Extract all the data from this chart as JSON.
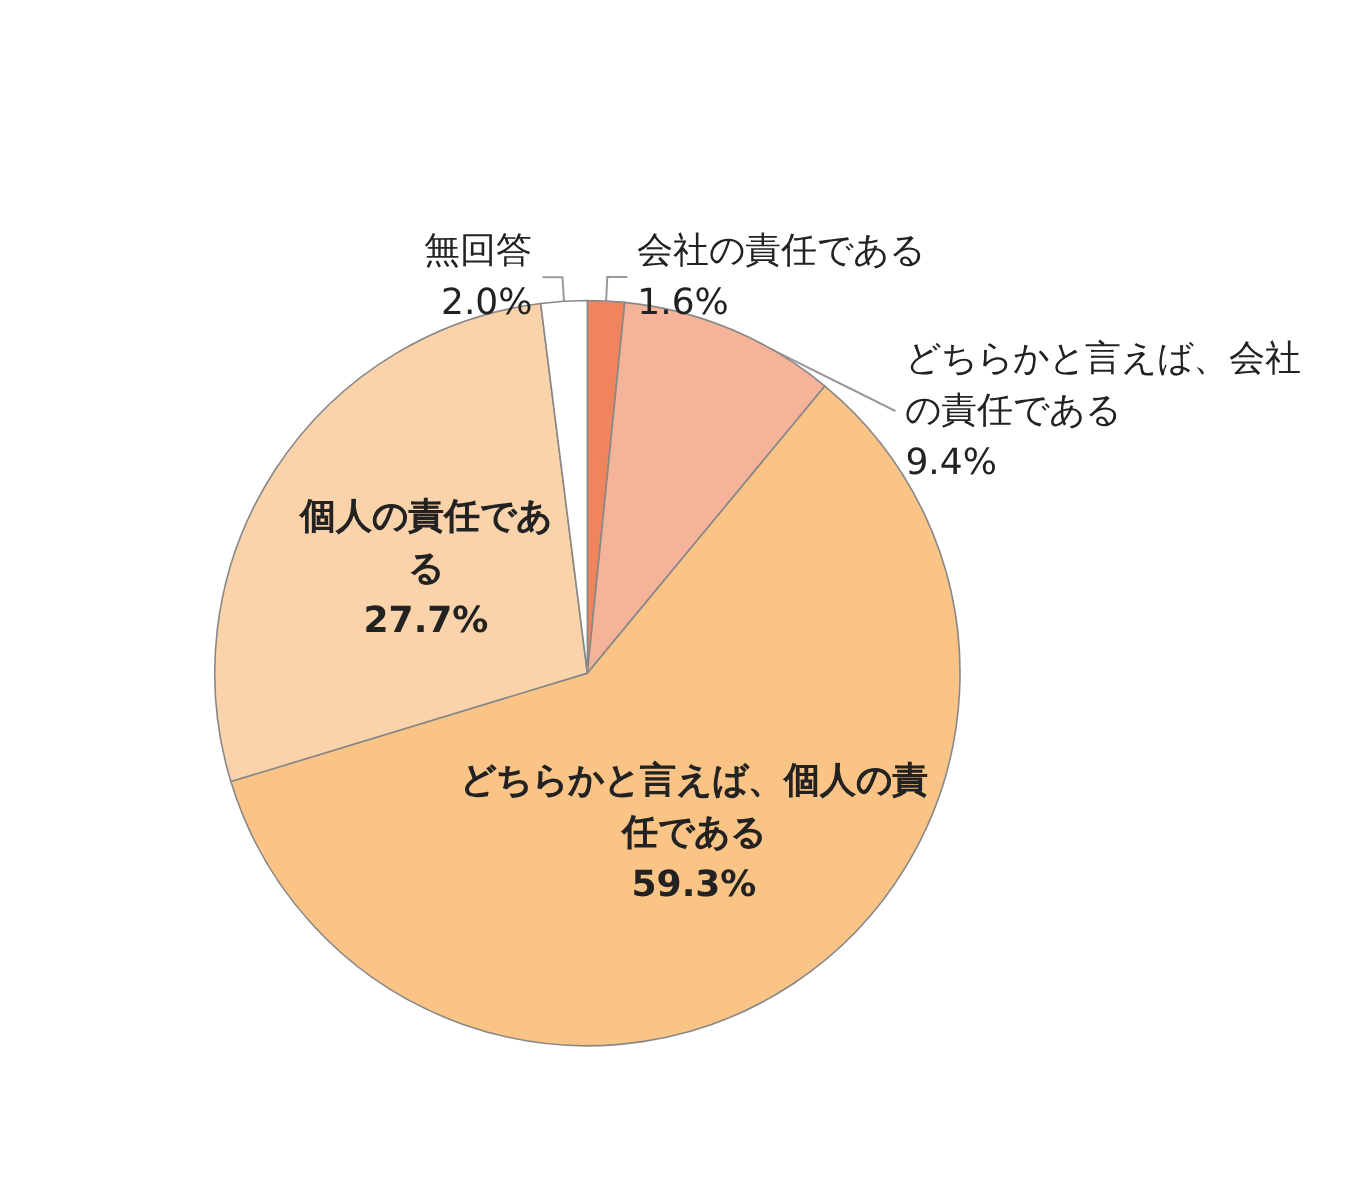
{
  "chart_data": {
    "type": "pie",
    "categories": [
      "会社の責任である",
      "どちらかと言えば、会社の責任である",
      "どちらかと言えば、個人の責任である",
      "個人の責任である",
      "無回答"
    ],
    "values": [
      1.6,
      9.4,
      59.3,
      27.7,
      2.0
    ],
    "value_labels": [
      "1.6%",
      "9.4%",
      "59.3%",
      "27.7%",
      "2.0%"
    ],
    "colors": [
      "#f0845c",
      "#f5b49a",
      "#f9c486",
      "#fbd3aa",
      "#ffffff"
    ],
    "legend": false
  }
}
